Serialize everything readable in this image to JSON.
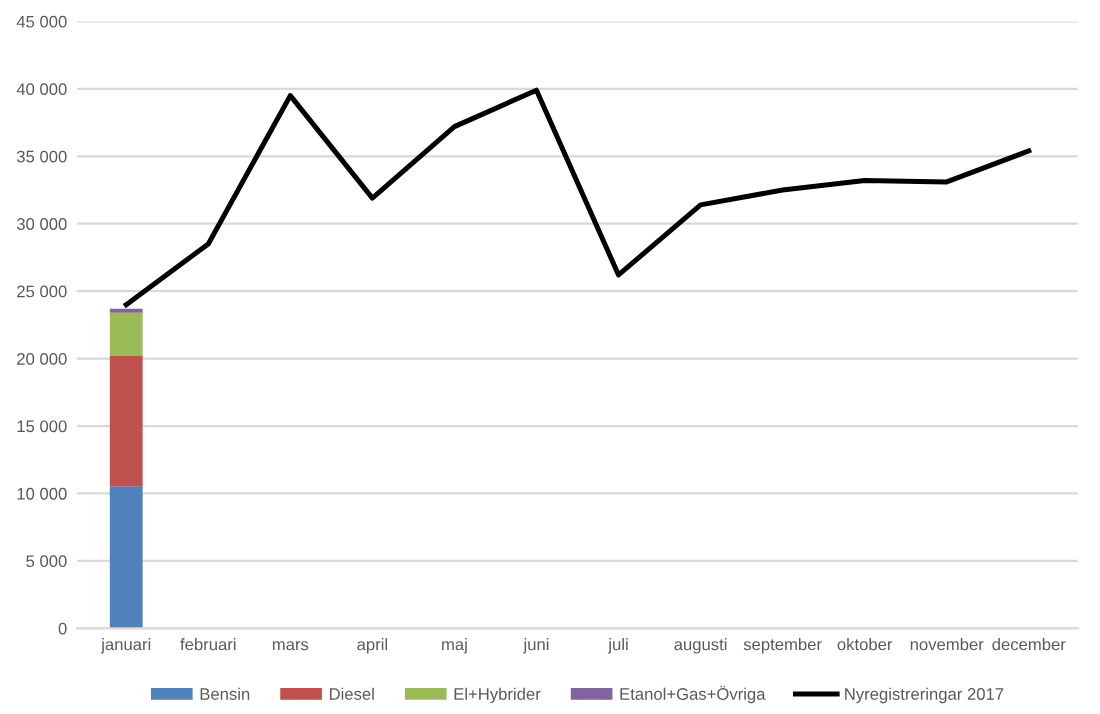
{
  "chart_data": {
    "type": "bar",
    "stacked": true,
    "categories": [
      "januari",
      "februari",
      "mars",
      "april",
      "maj",
      "juni",
      "juli",
      "augusti",
      "september",
      "oktober",
      "november",
      "december"
    ],
    "series": [
      {
        "name": "Bensin",
        "color": "#4f81bd",
        "values": [
          10500,
          null,
          null,
          null,
          null,
          null,
          null,
          null,
          null,
          null,
          null,
          null
        ]
      },
      {
        "name": "Diesel",
        "color": "#c0504d",
        "values": [
          9700,
          null,
          null,
          null,
          null,
          null,
          null,
          null,
          null,
          null,
          null,
          null
        ]
      },
      {
        "name": "El+Hybrider",
        "color": "#9bbb59",
        "values": [
          3200,
          null,
          null,
          null,
          null,
          null,
          null,
          null,
          null,
          null,
          null,
          null
        ]
      },
      {
        "name": "Etanol+Gas+Övriga",
        "color": "#8064a2",
        "values": [
          300,
          null,
          null,
          null,
          null,
          null,
          null,
          null,
          null,
          null,
          null,
          null
        ]
      },
      {
        "name": "Nyregistreringar 2017",
        "type": "line",
        "color": "#000000",
        "values": [
          24000,
          28500,
          39500,
          31900,
          37200,
          39900,
          26200,
          31400,
          32500,
          33200,
          33100,
          35400
        ]
      }
    ],
    "ylim": [
      0,
      45000
    ],
    "yticks": [
      {
        "value": 0,
        "label": "0"
      },
      {
        "value": 5000,
        "label": "5 000"
      },
      {
        "value": 10000,
        "label": "10 000"
      },
      {
        "value": 15000,
        "label": "15 000"
      },
      {
        "value": 20000,
        "label": "20 000"
      },
      {
        "value": 25000,
        "label": "25 000"
      },
      {
        "value": 30000,
        "label": "30 000"
      },
      {
        "value": 35000,
        "label": "35 000"
      },
      {
        "value": 40000,
        "label": "40 000"
      },
      {
        "value": 45000,
        "label": "45 000"
      }
    ],
    "grid": "y",
    "legend": "bottom",
    "marker": "none",
    "line_style": "solid"
  }
}
